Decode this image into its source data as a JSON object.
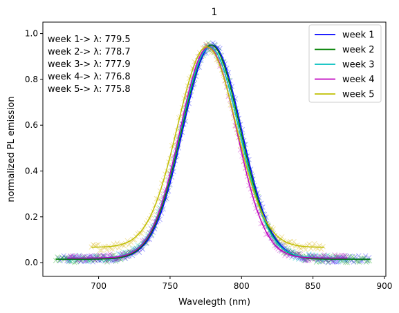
{
  "chart_data": {
    "type": "line",
    "title": "1",
    "xlabel": "Wavelegth (nm)",
    "ylabel": "normalized PL emission",
    "xlim": [
      661,
      901
    ],
    "ylim": [
      -0.06,
      1.05
    ],
    "xticks": [
      700,
      750,
      800,
      850,
      900
    ],
    "yticks": [
      0.0,
      0.2,
      0.4,
      0.6,
      0.8,
      1.0
    ],
    "legend_position": "top-right",
    "annotations": [
      "week 1-> λ: 779.5",
      "week 2-> λ: 778.7",
      "week 3-> λ: 777.9",
      "week 4-> λ: 776.8",
      "week 5-> λ: 775.8"
    ],
    "series": [
      {
        "name": "week 1",
        "color": "#0000ff",
        "marker_color": "#0000ff",
        "peak_x": 779.5,
        "amplitude": 0.935,
        "sigma": 20.5,
        "offset": 0.015,
        "x_range": [
          672,
          890
        ]
      },
      {
        "name": "week 2",
        "color": "#008000",
        "marker_color": "#00a000",
        "peak_x": 778.7,
        "amplitude": 0.935,
        "sigma": 20.5,
        "offset": 0.015,
        "x_range": [
          670,
          890
        ]
      },
      {
        "name": "week 3",
        "color": "#00bfbf",
        "marker_color": "#00bfbf",
        "peak_x": 777.9,
        "amplitude": 0.92,
        "sigma": 20.5,
        "offset": 0.02,
        "x_range": [
          678,
          874
        ]
      },
      {
        "name": "week 4",
        "color": "#bf00bf",
        "marker_color": "#bf00bf",
        "peak_x": 776.8,
        "amplitude": 0.92,
        "sigma": 19.8,
        "offset": 0.02,
        "x_range": [
          678,
          874
        ]
      },
      {
        "name": "week 5",
        "color": "#bfbf00",
        "marker_color": "#d4b000",
        "peak_x": 775.8,
        "amplitude": 0.875,
        "sigma": 20.5,
        "offset": 0.067,
        "x_range": [
          695,
          858
        ]
      }
    ]
  }
}
